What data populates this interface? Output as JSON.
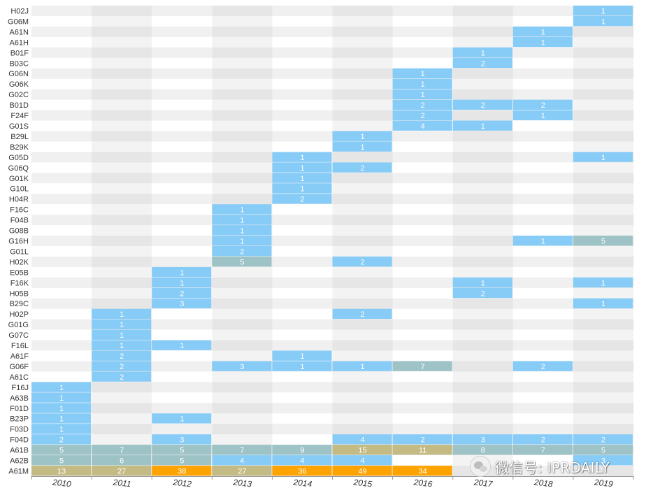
{
  "chart_data": {
    "type": "heatmap",
    "title": "",
    "xlabel": "",
    "ylabel": "",
    "years": [
      "2010",
      "2011",
      "2012",
      "2013",
      "2014",
      "2015",
      "2016",
      "2017",
      "2018",
      "2019"
    ],
    "codes": [
      "H02J",
      "G06M",
      "A61N",
      "A61H",
      "B01F",
      "B03C",
      "G06N",
      "G06K",
      "G02C",
      "B01D",
      "F24F",
      "G01S",
      "B29L",
      "B29K",
      "G05D",
      "G06Q",
      "G01K",
      "G10L",
      "H04R",
      "F16C",
      "F04B",
      "G08B",
      "G16H",
      "G01L",
      "H02K",
      "E05B",
      "F16K",
      "H05B",
      "B29C",
      "H02P",
      "G01G",
      "G07C",
      "F16L",
      "A61F",
      "G06F",
      "A61C",
      "F16J",
      "A63B",
      "F01D",
      "B23P",
      "F03D",
      "F04D",
      "A61B",
      "A62B",
      "A61M"
    ],
    "values": [
      [
        null,
        null,
        null,
        null,
        null,
        null,
        null,
        null,
        null,
        1
      ],
      [
        null,
        null,
        null,
        null,
        null,
        null,
        null,
        null,
        null,
        1
      ],
      [
        null,
        null,
        null,
        null,
        null,
        null,
        null,
        null,
        1,
        null
      ],
      [
        null,
        null,
        null,
        null,
        null,
        null,
        null,
        null,
        1,
        null
      ],
      [
        null,
        null,
        null,
        null,
        null,
        null,
        null,
        1,
        null,
        null
      ],
      [
        null,
        null,
        null,
        null,
        null,
        null,
        null,
        2,
        null,
        null
      ],
      [
        null,
        null,
        null,
        null,
        null,
        null,
        1,
        null,
        null,
        null
      ],
      [
        null,
        null,
        null,
        null,
        null,
        null,
        1,
        null,
        null,
        null
      ],
      [
        null,
        null,
        null,
        null,
        null,
        null,
        1,
        null,
        null,
        null
      ],
      [
        null,
        null,
        null,
        null,
        null,
        null,
        2,
        2,
        2,
        null
      ],
      [
        null,
        null,
        null,
        null,
        null,
        null,
        2,
        null,
        1,
        null
      ],
      [
        null,
        null,
        null,
        null,
        null,
        null,
        4,
        1,
        null,
        null
      ],
      [
        null,
        null,
        null,
        null,
        null,
        1,
        null,
        null,
        null,
        null
      ],
      [
        null,
        null,
        null,
        null,
        null,
        1,
        null,
        null,
        null,
        null
      ],
      [
        null,
        null,
        null,
        null,
        1,
        null,
        null,
        null,
        null,
        1
      ],
      [
        null,
        null,
        null,
        null,
        1,
        2,
        null,
        null,
        null,
        null
      ],
      [
        null,
        null,
        null,
        null,
        1,
        null,
        null,
        null,
        null,
        null
      ],
      [
        null,
        null,
        null,
        null,
        1,
        null,
        null,
        null,
        null,
        null
      ],
      [
        null,
        null,
        null,
        null,
        2,
        null,
        null,
        null,
        null,
        null
      ],
      [
        null,
        null,
        null,
        1,
        null,
        null,
        null,
        null,
        null,
        null
      ],
      [
        null,
        null,
        null,
        1,
        null,
        null,
        null,
        null,
        null,
        null
      ],
      [
        null,
        null,
        null,
        1,
        null,
        null,
        null,
        null,
        null,
        null
      ],
      [
        null,
        null,
        null,
        1,
        null,
        null,
        null,
        null,
        1,
        5
      ],
      [
        null,
        null,
        null,
        2,
        null,
        null,
        null,
        null,
        null,
        null
      ],
      [
        null,
        null,
        null,
        5,
        null,
        2,
        null,
        null,
        null,
        null
      ],
      [
        null,
        null,
        1,
        null,
        null,
        null,
        null,
        null,
        null,
        null
      ],
      [
        null,
        null,
        1,
        null,
        null,
        null,
        null,
        1,
        null,
        1
      ],
      [
        null,
        null,
        2,
        null,
        null,
        null,
        null,
        2,
        null,
        null
      ],
      [
        null,
        null,
        3,
        null,
        null,
        null,
        null,
        null,
        null,
        1
      ],
      [
        null,
        1,
        null,
        null,
        null,
        2,
        null,
        null,
        null,
        null
      ],
      [
        null,
        1,
        null,
        null,
        null,
        null,
        null,
        null,
        null,
        null
      ],
      [
        null,
        1,
        null,
        null,
        null,
        null,
        null,
        null,
        null,
        null
      ],
      [
        null,
        1,
        1,
        null,
        null,
        null,
        null,
        null,
        null,
        null
      ],
      [
        null,
        2,
        null,
        null,
        1,
        null,
        null,
        null,
        null,
        null
      ],
      [
        null,
        2,
        null,
        3,
        1,
        1,
        7,
        null,
        2,
        null
      ],
      [
        null,
        2,
        null,
        null,
        null,
        null,
        null,
        null,
        null,
        null
      ],
      [
        1,
        null,
        null,
        null,
        null,
        null,
        null,
        null,
        null,
        null
      ],
      [
        1,
        null,
        null,
        null,
        null,
        null,
        null,
        null,
        null,
        null
      ],
      [
        1,
        null,
        null,
        null,
        null,
        null,
        null,
        null,
        null,
        null
      ],
      [
        1,
        null,
        1,
        null,
        null,
        null,
        null,
        null,
        null,
        null
      ],
      [
        1,
        null,
        null,
        null,
        null,
        null,
        null,
        null,
        null,
        null
      ],
      [
        2,
        null,
        3,
        null,
        null,
        4,
        2,
        3,
        2,
        2
      ],
      [
        5,
        7,
        5,
        7,
        9,
        15,
        11,
        8,
        7,
        5
      ],
      [
        5,
        6,
        5,
        4,
        4,
        4,
        null,
        null,
        null,
        3
      ],
      [
        13,
        27,
        38,
        27,
        36,
        49,
        34,
        null,
        null,
        null
      ]
    ],
    "colors": {
      "low": "#87cbf7",
      "mid": "#9dc3c7",
      "high": "#c3bb83",
      "top": "#ffa300",
      "stripe_dark": "#e6e6e6",
      "stripe_light": "#f3f3f3",
      "plain_dark": "#f0f0f0",
      "plain_light": "#ffffff"
    },
    "grid": false,
    "legend": "none"
  },
  "watermark": {
    "icon": "wechat-icon",
    "text": "微信号: IPRDAILY"
  }
}
